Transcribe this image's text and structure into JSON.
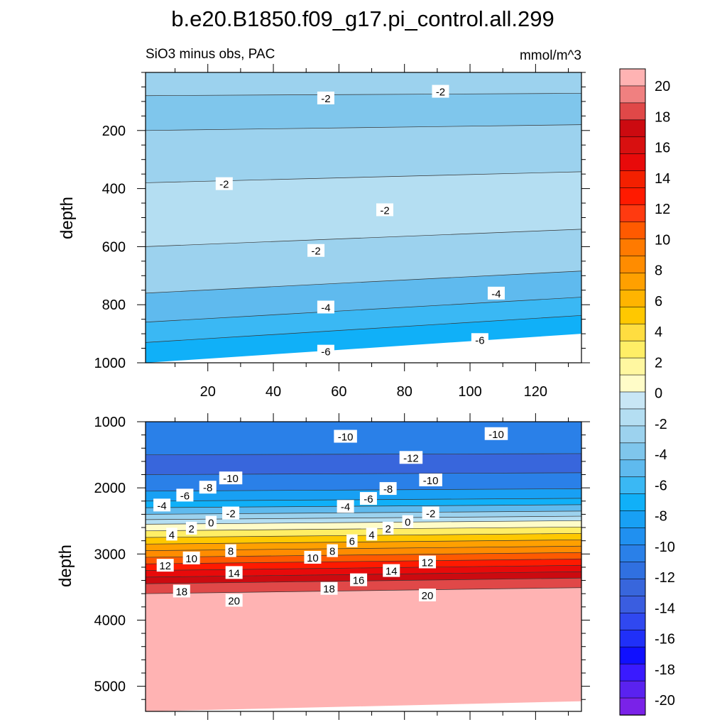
{
  "chart_data": [
    {
      "type": "heatmap",
      "title": "b.e20.B1850.f09_g17.pi_control.all.299",
      "subtitle_left": "SiO3 minus obs, PAC",
      "subtitle_right": "mmol/m^3",
      "ylabel": "depth",
      "xlabel": "",
      "xlim": [
        1,
        134
      ],
      "ylim": [
        1000,
        0
      ],
      "x_ticks": [
        20,
        40,
        60,
        80,
        100,
        120
      ],
      "y_ticks": [
        200,
        400,
        600,
        800,
        1000
      ],
      "grid": false,
      "bands": [
        {
          "from_depth": 0,
          "to_depth": 80,
          "value": -2
        },
        {
          "from_depth": 80,
          "to_depth": 200,
          "value": -3
        },
        {
          "from_depth": 200,
          "to_depth": 380,
          "value": -2
        },
        {
          "from_depth": 380,
          "to_depth": 600,
          "value": -1
        },
        {
          "from_depth": 600,
          "to_depth": 760,
          "value": -2
        },
        {
          "from_depth": 760,
          "to_depth": 860,
          "value": -4
        },
        {
          "from_depth": 860,
          "to_depth": 930,
          "value": -5
        },
        {
          "from_depth": 930,
          "to_depth": 1000,
          "value": -6
        }
      ],
      "contour_labels": [
        {
          "text": "-2",
          "x": 56,
          "y": 88
        },
        {
          "text": "-2",
          "x": 91,
          "y": 65
        },
        {
          "text": "-2",
          "x": 25,
          "y": 383
        },
        {
          "text": "-2",
          "x": 74,
          "y": 473
        },
        {
          "text": "-2",
          "x": 53,
          "y": 613
        },
        {
          "text": "-4",
          "x": 56,
          "y": 808
        },
        {
          "text": "-4",
          "x": 108,
          "y": 760
        },
        {
          "text": "-6",
          "x": 56,
          "y": 960
        },
        {
          "text": "-6",
          "x": 103,
          "y": 920
        }
      ]
    },
    {
      "type": "heatmap",
      "ylabel": "depth",
      "xlabel": "",
      "xlim": [
        1,
        134
      ],
      "ylim": [
        5380,
        1000
      ],
      "y_ticks": [
        1000,
        2000,
        3000,
        4000,
        5000
      ],
      "grid": false,
      "bands": [
        {
          "from_depth": 1000,
          "to_depth": 1500,
          "value": -10
        },
        {
          "from_depth": 1500,
          "to_depth": 1800,
          "value": -12
        },
        {
          "from_depth": 1800,
          "to_depth": 2050,
          "value": -10
        },
        {
          "from_depth": 2050,
          "to_depth": 2200,
          "value": -8
        },
        {
          "from_depth": 2200,
          "to_depth": 2300,
          "value": -6
        },
        {
          "from_depth": 2300,
          "to_depth": 2400,
          "value": -4
        },
        {
          "from_depth": 2400,
          "to_depth": 2480,
          "value": -2
        },
        {
          "from_depth": 2480,
          "to_depth": 2550,
          "value": -1
        },
        {
          "from_depth": 2550,
          "to_depth": 2650,
          "value": 1
        },
        {
          "from_depth": 2650,
          "to_depth": 2750,
          "value": 3
        },
        {
          "from_depth": 2750,
          "to_depth": 2850,
          "value": 5
        },
        {
          "from_depth": 2850,
          "to_depth": 2950,
          "value": 7
        },
        {
          "from_depth": 2950,
          "to_depth": 3050,
          "value": 9
        },
        {
          "from_depth": 3050,
          "to_depth": 3150,
          "value": 11
        },
        {
          "from_depth": 3150,
          "to_depth": 3250,
          "value": 13
        },
        {
          "from_depth": 3250,
          "to_depth": 3350,
          "value": 15
        },
        {
          "from_depth": 3350,
          "to_depth": 3450,
          "value": 17
        },
        {
          "from_depth": 3450,
          "to_depth": 3600,
          "value": 19
        },
        {
          "from_depth": 3600,
          "to_depth": 5380,
          "value": 21
        }
      ],
      "contour_labels": [
        {
          "text": "-10",
          "x": 62,
          "y": 1220
        },
        {
          "text": "-10",
          "x": 108,
          "y": 1180
        },
        {
          "text": "-12",
          "x": 82,
          "y": 1540
        },
        {
          "text": "-10",
          "x": 27,
          "y": 1850
        },
        {
          "text": "-10",
          "x": 88,
          "y": 1880
        },
        {
          "text": "-8",
          "x": 20,
          "y": 1990
        },
        {
          "text": "-8",
          "x": 75,
          "y": 2010
        },
        {
          "text": "-6",
          "x": 13,
          "y": 2110
        },
        {
          "text": "-6",
          "x": 69,
          "y": 2160
        },
        {
          "text": "-4",
          "x": 6,
          "y": 2260
        },
        {
          "text": "-4",
          "x": 62,
          "y": 2280
        },
        {
          "text": "-2",
          "x": 27,
          "y": 2380
        },
        {
          "text": "-2",
          "x": 88,
          "y": 2380
        },
        {
          "text": "0",
          "x": 21,
          "y": 2520
        },
        {
          "text": "0",
          "x": 81,
          "y": 2510
        },
        {
          "text": "2",
          "x": 15,
          "y": 2610
        },
        {
          "text": "2",
          "x": 75,
          "y": 2610
        },
        {
          "text": "4",
          "x": 9,
          "y": 2700
        },
        {
          "text": "4",
          "x": 70,
          "y": 2700
        },
        {
          "text": "6",
          "x": 64,
          "y": 2800
        },
        {
          "text": "8",
          "x": 27,
          "y": 2950
        },
        {
          "text": "8",
          "x": 58,
          "y": 2950
        },
        {
          "text": "10",
          "x": 15,
          "y": 3060
        },
        {
          "text": "10",
          "x": 52,
          "y": 3050
        },
        {
          "text": "12",
          "x": 7,
          "y": 3170
        },
        {
          "text": "12",
          "x": 87,
          "y": 3120
        },
        {
          "text": "14",
          "x": 28,
          "y": 3280
        },
        {
          "text": "14",
          "x": 76,
          "y": 3250
        },
        {
          "text": "16",
          "x": 66,
          "y": 3390
        },
        {
          "text": "18",
          "x": 12,
          "y": 3560
        },
        {
          "text": "18",
          "x": 57,
          "y": 3520
        },
        {
          "text": "20",
          "x": 28,
          "y": 3700
        },
        {
          "text": "20",
          "x": 87,
          "y": 3620
        }
      ]
    }
  ],
  "colorbar": {
    "labels": [
      "20",
      "18",
      "16",
      "14",
      "12",
      "10",
      "8",
      "6",
      "4",
      "2",
      "0",
      "-2",
      "-4",
      "-6",
      "-8",
      "-10",
      "-12",
      "-14",
      "-16",
      "-18",
      "-20"
    ],
    "colors": [
      "#ffb3b3",
      "#f08080",
      "#e04848",
      "#cc0a10",
      "#d81010",
      "#e80a0a",
      "#f42000",
      "#ff1a00",
      "#ff3a10",
      "#ff5a00",
      "#ff7a00",
      "#ff8c00",
      "#ffa000",
      "#ffb400",
      "#ffc800",
      "#ffdd40",
      "#ffee66",
      "#fff7a0",
      "#fffcc8",
      "#c8e6f5",
      "#b4def2",
      "#9cd2ee",
      "#7fc6ec",
      "#5fbaee",
      "#3ab8f4",
      "#10b0f8",
      "#18a0f4",
      "#2090f0",
      "#2a80e8",
      "#3070e0",
      "#3866dc",
      "#3a5de0",
      "#3048f0",
      "#2030f8",
      "#1010ff",
      "#3a1aff",
      "#5a22f0",
      "#7a22e8"
    ]
  }
}
